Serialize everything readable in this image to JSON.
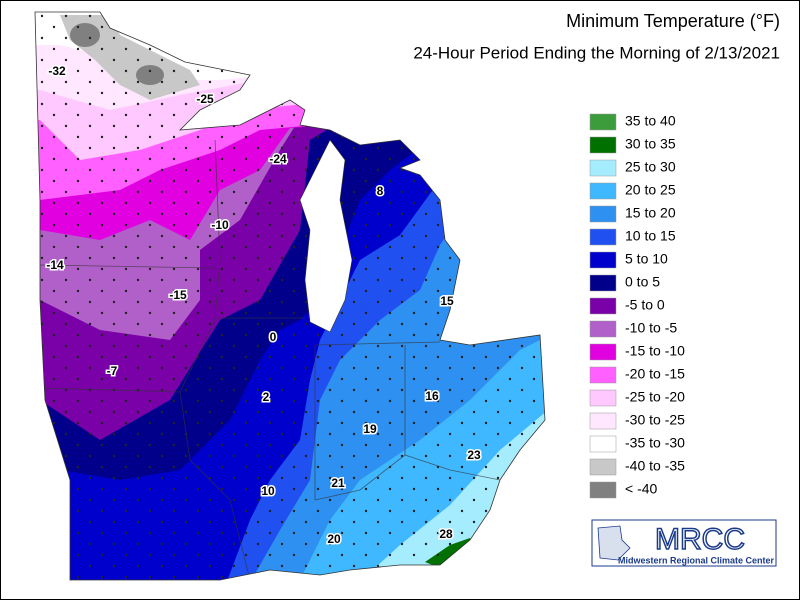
{
  "header": {
    "title": "Minimum Temperature (°F)",
    "subtitle": "24-Hour Period Ending the Morning of 2/13/2021"
  },
  "legend": [
    {
      "label": "35 to 40",
      "color": "#3c9c3c"
    },
    {
      "label": "30 to 35",
      "color": "#007000"
    },
    {
      "label": "25 to 30",
      "color": "#a6ecff"
    },
    {
      "label": "20 to 25",
      "color": "#40b8ff"
    },
    {
      "label": "15 to 20",
      "color": "#2e90f0"
    },
    {
      "label": "10 to 15",
      "color": "#2050f0"
    },
    {
      "label": "5 to 10",
      "color": "#0000cc"
    },
    {
      "label": "0 to 5",
      "color": "#00008b"
    },
    {
      "label": "-5 to 0",
      "color": "#7a00a8"
    },
    {
      "label": "-10 to -5",
      "color": "#b060c8"
    },
    {
      "label": "-15 to -10",
      "color": "#e000e0"
    },
    {
      "label": "-20 to -15",
      "color": "#ff60ff"
    },
    {
      "label": "-25 to -20",
      "color": "#ffc8ff"
    },
    {
      "label": "-30 to -25",
      "color": "#ffe8ff"
    },
    {
      "label": "-35 to -30",
      "color": "#ffffff"
    },
    {
      "label": "-40 to -35",
      "color": "#c8c8c8"
    },
    {
      "label": "< -40",
      "color": "#808080"
    }
  ],
  "stations": [
    -32,
    -25,
    -24,
    8,
    -10,
    -14,
    -15,
    15,
    0,
    -7,
    2,
    16,
    19,
    23,
    21,
    10,
    20,
    28
  ],
  "logo": {
    "acronym": "MRCC",
    "name": "Midwestern Regional Climate Center"
  }
}
